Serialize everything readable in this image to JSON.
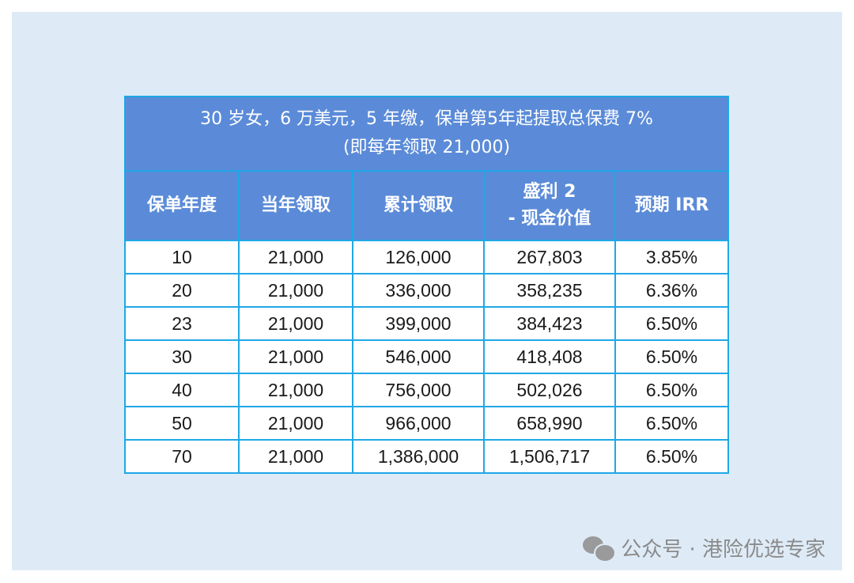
{
  "table": {
    "title_line1": "30 岁女，6 万美元，5 年缴，保单第5年起提取总保费 7%",
    "title_line2": "(即每年领取 21,000)",
    "headers": {
      "year": "保单年度",
      "annual": "当年领取",
      "cumulative": "累计领取",
      "surplus_line1": "盛利 2",
      "surplus_line2": "- 现金价值",
      "irr": "预期 IRR"
    },
    "rows": [
      {
        "year": "10",
        "annual": "21,000",
        "cumulative": "126,000",
        "cash_value": "267,803",
        "irr": "3.85%"
      },
      {
        "year": "20",
        "annual": "21,000",
        "cumulative": "336,000",
        "cash_value": "358,235",
        "irr": "6.36%"
      },
      {
        "year": "23",
        "annual": "21,000",
        "cumulative": "399,000",
        "cash_value": "384,423",
        "irr": "6.50%"
      },
      {
        "year": "30",
        "annual": "21,000",
        "cumulative": "546,000",
        "cash_value": "418,408",
        "irr": "6.50%"
      },
      {
        "year": "40",
        "annual": "21,000",
        "cumulative": "756,000",
        "cash_value": "502,026",
        "irr": "6.50%"
      },
      {
        "year": "50",
        "annual": "21,000",
        "cumulative": "966,000",
        "cash_value": "658,990",
        "irr": "6.50%"
      },
      {
        "year": "70",
        "annual": "21,000",
        "cumulative": "1,386,000",
        "cash_value": "1,506,717",
        "irr": "6.50%"
      }
    ]
  },
  "watermark": {
    "text": "公众号 · 港险优选专家",
    "icon": "wechat-icon"
  }
}
